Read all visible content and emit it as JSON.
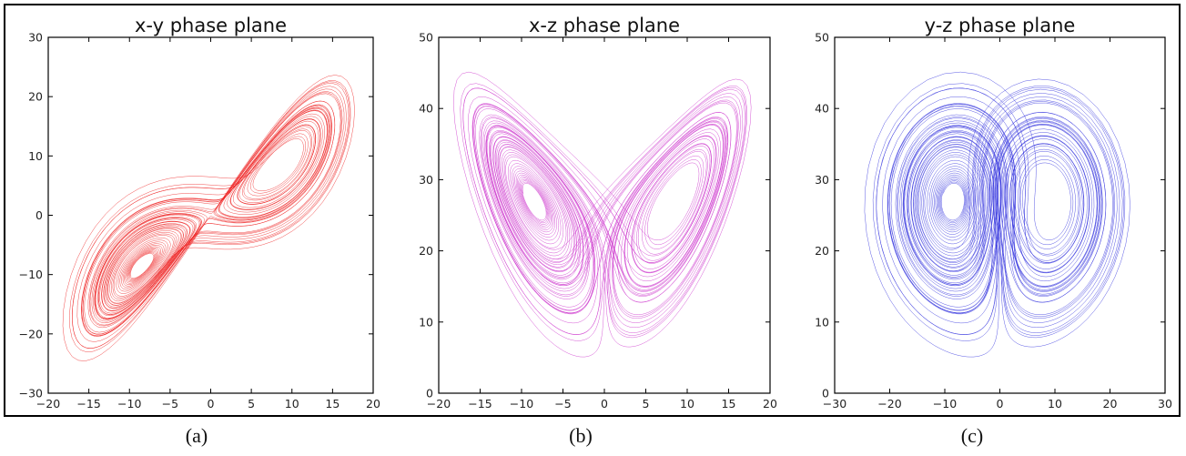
{
  "captions": [
    "(a)",
    "(b)",
    "(c)"
  ],
  "chart_data": [
    {
      "type": "line",
      "title": "x-y phase plane",
      "xlim": [
        -20,
        20
      ],
      "ylim": [
        -30,
        30
      ],
      "xticks": [
        -20,
        -15,
        -10,
        -5,
        0,
        5,
        10,
        15,
        20
      ],
      "yticks": [
        -30,
        -20,
        -10,
        0,
        10,
        20,
        30
      ],
      "color": "#ee2222",
      "projection": [
        "x",
        "y"
      ]
    },
    {
      "type": "line",
      "title": "x-z phase plane",
      "xlim": [
        -20,
        20
      ],
      "ylim": [
        0,
        50
      ],
      "xticks": [
        -20,
        -15,
        -10,
        -5,
        0,
        5,
        10,
        15,
        20
      ],
      "yticks": [
        0,
        10,
        20,
        30,
        40,
        50
      ],
      "color": "#cc33cc",
      "projection": [
        "x",
        "z"
      ]
    },
    {
      "type": "line",
      "title": "y-z phase plane",
      "xlim": [
        -30,
        30
      ],
      "ylim": [
        0,
        50
      ],
      "xticks": [
        -30,
        -20,
        -10,
        0,
        10,
        20,
        30
      ],
      "yticks": [
        0,
        10,
        20,
        30,
        40,
        50
      ],
      "color": "#3333dd",
      "projection": [
        "y",
        "z"
      ]
    }
  ]
}
